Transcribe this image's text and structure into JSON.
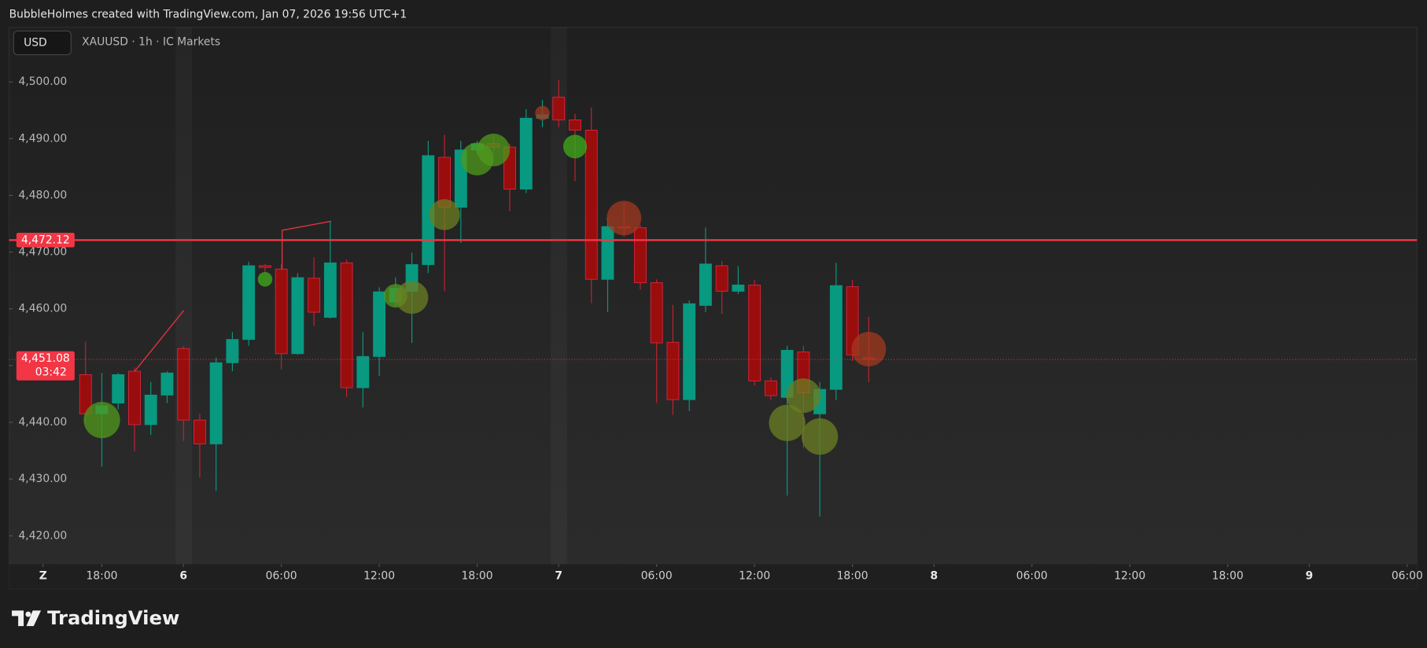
{
  "header": {
    "credit": "BubbleHolmes created with TradingView.com, Jan 07, 2026 19:56 UTC+1"
  },
  "footer": {
    "brand": "TradingView"
  },
  "chart_data": {
    "type": "candlestick",
    "currency": "USD",
    "symbol": "XAUUSD · 1h · IC Markets",
    "up_color": "#089981",
    "down_color": "#990d0d",
    "open": [
      4448.4,
      4441.5,
      4443.4,
      4449.0,
      4439.6,
      4444.8,
      4453.0,
      4440.4,
      4436.2,
      4450.5,
      4454.6,
      4467.6,
      4467.0,
      4452.1,
      4465.4,
      4458.5,
      4468.1,
      4446.1,
      4451.6,
      4461.2,
      4463.1,
      4467.8,
      4486.7,
      4477.9,
      4488.0,
      4489.1,
      4488.5,
      4481.1,
      4493.6,
      4497.3,
      4493.3,
      4491.5,
      4465.2,
      4474.5,
      4474.3,
      4464.6,
      4454.1,
      4444.0,
      4460.6,
      4467.6,
      4463.1,
      4464.2,
      4447.3,
      4444.4,
      4452.4,
      4441.5,
      4445.8,
      4463.9,
      4451.4
    ],
    "high": [
      4454.2,
      4448.7,
      4448.7,
      4449.7,
      4447.1,
      4449.0,
      4453.5,
      4441.5,
      4451.4,
      4455.9,
      4468.3,
      4467.9,
      4467.9,
      4466.3,
      4469.1,
      4475.5,
      4468.7,
      4455.9,
      4463.8,
      4465.5,
      4469.9,
      4489.6,
      4490.7,
      4489.6,
      4489.6,
      4490.4,
      4489.1,
      4495.2,
      4496.8,
      4500.3,
      4494.4,
      4495.5,
      4476.0,
      4478.8,
      4474.8,
      4465.2,
      4460.7,
      4461.5,
      4474.3,
      4468.4,
      4467.5,
      4465.1,
      4447.9,
      4453.5,
      4453.5,
      4447.1,
      4468.1,
      4465.1,
      4458.6
    ],
    "low": [
      4439.9,
      4432.2,
      4442.3,
      4434.9,
      4437.8,
      4443.4,
      4436.7,
      4430.3,
      4427.9,
      4449.0,
      4453.5,
      4466.3,
      4449.3,
      4451.9,
      4457.0,
      4458.3,
      4444.5,
      4442.6,
      4448.2,
      4460.4,
      4454.0,
      4466.3,
      4463.1,
      4471.6,
      4487.2,
      4486.9,
      4477.2,
      4480.4,
      4492.0,
      4492.0,
      4482.5,
      4461.0,
      4459.4,
      4472.7,
      4463.4,
      4443.4,
      4441.3,
      4442.0,
      4459.4,
      4459.1,
      4462.6,
      4446.5,
      4443.9,
      4427.1,
      4435.4,
      4423.4,
      4443.9,
      4450.8,
      4447.1
    ],
    "close": [
      4441.5,
      4442.9,
      4448.4,
      4439.6,
      4444.8,
      4448.7,
      4440.4,
      4436.2,
      4450.5,
      4454.6,
      4467.6,
      4467.3,
      4452.1,
      4465.5,
      4459.4,
      4468.1,
      4446.1,
      4451.6,
      4463.0,
      4463.6,
      4467.8,
      4487.0,
      4477.9,
      4488.0,
      4489.1,
      4488.5,
      4481.1,
      4493.6,
      4494.2,
      4493.3,
      4491.5,
      4465.2,
      4474.5,
      4474.3,
      4464.6,
      4454.0,
      4444.0,
      4460.9,
      4467.9,
      4463.1,
      4464.2,
      4447.3,
      4444.7,
      4452.7,
      4445.2,
      4445.8,
      4464.1,
      4451.9,
      4451.08
    ],
    "bubbles": {
      "x": [
        1,
        11,
        19,
        20,
        22,
        24,
        25,
        28,
        30,
        33,
        43,
        44,
        45,
        48
      ],
      "y": [
        4440.4,
        4465.2,
        4462.3,
        4462.0,
        4476.6,
        4486.4,
        4488.0,
        4494.5,
        4488.6,
        4476.0,
        4439.9,
        4444.7,
        4437.5,
        4452.9
      ],
      "size": [
        20,
        8,
        13,
        18,
        17,
        18,
        18,
        8,
        13,
        19,
        20,
        19,
        20,
        19
      ],
      "colors": [
        "#4f9a1c",
        "#3fae1a",
        "#4f9a1c",
        "#6b7f22",
        "#6b7f22",
        "#4f9a1c",
        "#4f9a1c",
        "#a33a1f",
        "#3fae1a",
        "#a33a1f",
        "#6b7f22",
        "#6b7f22",
        "#6b7f22",
        "#a33a1f"
      ],
      "opacity": 0.75
    },
    "price_line": {
      "value": 4472.12,
      "label": "4,472.12",
      "color": "#f23645"
    },
    "last_price": {
      "value": 4451.08,
      "label": "4,451.08",
      "countdown": "03:42",
      "color": "#f23645"
    },
    "xlim": [
      -4.685,
      81.6
    ],
    "ylim": [
      4415.0,
      4509.6
    ],
    "yticks": [
      {
        "value": 4500,
        "label": "4,500.00"
      },
      {
        "value": 4490,
        "label": "4,490.00"
      },
      {
        "value": 4480,
        "label": "4,480.00"
      },
      {
        "value": 4470,
        "label": "4,470.00"
      },
      {
        "value": 4460,
        "label": "4,460.00"
      },
      {
        "value": 4450,
        "label": "4,450.00"
      },
      {
        "value": 4440,
        "label": "4,440.00"
      },
      {
        "value": 4430,
        "label": "4,430.00"
      },
      {
        "value": 4420,
        "label": "4,420.00"
      }
    ],
    "xticks": [
      {
        "value": -2.6,
        "label": "Z"
      },
      {
        "value": 1,
        "label": "18:00"
      },
      {
        "value": 6,
        "label": "6"
      },
      {
        "value": 12,
        "label": "06:00"
      },
      {
        "value": 18,
        "label": "12:00"
      },
      {
        "value": 24,
        "label": "18:00"
      },
      {
        "value": 29,
        "label": "7"
      },
      {
        "value": 35,
        "label": "06:00"
      },
      {
        "value": 41,
        "label": "12:00"
      },
      {
        "value": 47,
        "label": "18:00"
      },
      {
        "value": 52,
        "label": "8"
      },
      {
        "value": 58,
        "label": "06:00"
      },
      {
        "value": 64,
        "label": "12:00"
      },
      {
        "value": 70,
        "label": "18:00"
      },
      {
        "value": 75,
        "label": "9"
      },
      {
        "value": 81,
        "label": "06:00"
      }
    ],
    "grid": false
  }
}
